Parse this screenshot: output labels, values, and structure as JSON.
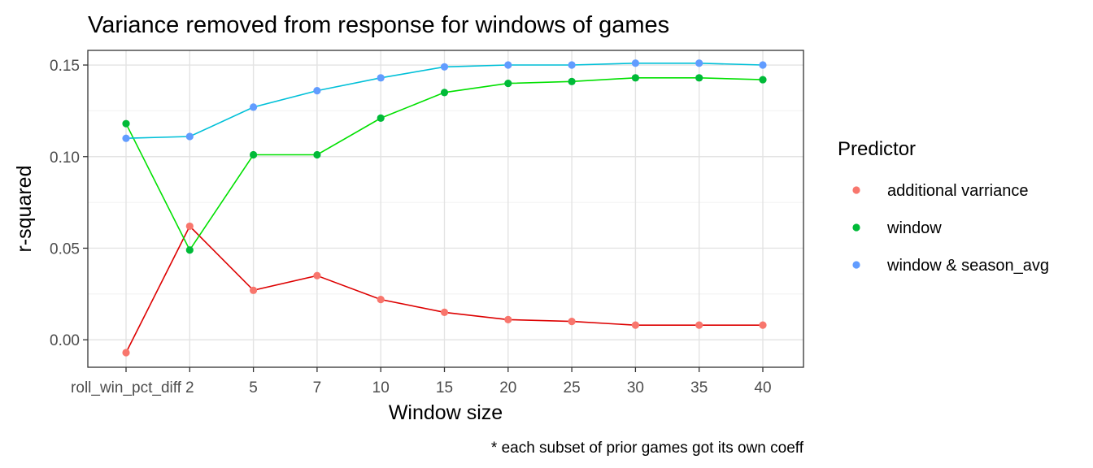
{
  "chart_data": {
    "type": "line",
    "title": "Variance removed from response for windows of games",
    "xlabel": "Window size",
    "ylabel": "r-squared",
    "caption": "* each subset of prior games got its own coeff",
    "categories": [
      "roll_win_pct_diff",
      "2",
      "5",
      "7",
      "10",
      "15",
      "20",
      "25",
      "30",
      "35",
      "40"
    ],
    "ylim": [
      -0.015,
      0.158
    ],
    "yticks": [
      0.0,
      0.05,
      0.1,
      0.15
    ],
    "ytick_labels": [
      "0.00",
      "0.05",
      "0.10",
      "0.15"
    ],
    "grid": true,
    "legend": {
      "title": "Predictor",
      "position": "right"
    },
    "series": [
      {
        "name": "additional varriance",
        "point_color": "#F8766D",
        "line_color": "#DD0000",
        "values": [
          -0.007,
          0.062,
          0.027,
          0.035,
          0.022,
          0.015,
          0.011,
          0.01,
          0.008,
          0.008,
          0.008
        ]
      },
      {
        "name": "window",
        "point_color": "#00BA38",
        "line_color": "#00E000",
        "values": [
          0.118,
          0.049,
          0.101,
          0.101,
          0.121,
          0.135,
          0.14,
          0.141,
          0.143,
          0.143,
          0.142
        ]
      },
      {
        "name": "window & season_avg",
        "point_color": "#619CFF",
        "line_color": "#00C0D8",
        "values": [
          0.11,
          0.111,
          0.127,
          0.136,
          0.143,
          0.149,
          0.15,
          0.15,
          0.151,
          0.151,
          0.15
        ]
      }
    ]
  }
}
